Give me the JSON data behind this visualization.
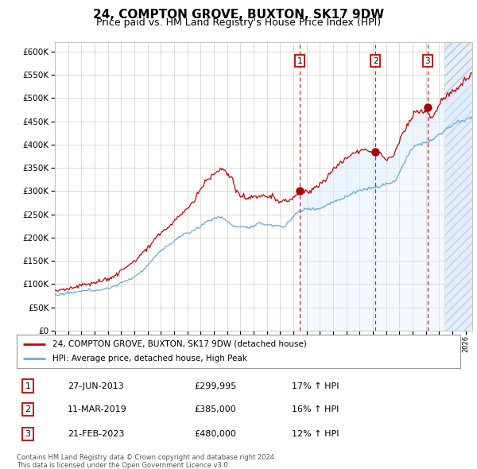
{
  "title": "24, COMPTON GROVE, BUXTON, SK17 9DW",
  "subtitle": "Price paid vs. HM Land Registry's House Price Index (HPI)",
  "ylim": [
    0,
    620000
  ],
  "yticks": [
    0,
    50000,
    100000,
    150000,
    200000,
    250000,
    300000,
    350000,
    400000,
    450000,
    500000,
    550000,
    600000
  ],
  "xlim_start": 1995.0,
  "xlim_end": 2026.5,
  "sale_dates": [
    2013.49,
    2019.19,
    2023.13
  ],
  "sale_prices": [
    299995,
    385000,
    480000
  ],
  "sale_labels": [
    "1",
    "2",
    "3"
  ],
  "legend_line1": "24, COMPTON GROVE, BUXTON, SK17 9DW (detached house)",
  "legend_line2": "HPI: Average price, detached house, High Peak",
  "table_entries": [
    [
      "1",
      "27-JUN-2013",
      "£299,995",
      "17% ↑ HPI"
    ],
    [
      "2",
      "11-MAR-2019",
      "£385,000",
      "16% ↑ HPI"
    ],
    [
      "3",
      "21-FEB-2023",
      "£480,000",
      "12% ↑ HPI"
    ]
  ],
  "footnote": "Contains HM Land Registry data © Crown copyright and database right 2024.\nThis data is licensed under the Open Government Licence v3.0.",
  "hpi_color": "#6aaadd",
  "price_color": "#cc0000",
  "sale_dot_color": "#aa0000",
  "vline_color": "#cc0000",
  "hpi_fill_color": "#ddeeff",
  "background_color": "#ffffff",
  "grid_color": "#cccccc",
  "title_fontsize": 11,
  "subtitle_fontsize": 9,
  "axis_fontsize": 7.5,
  "hatch_start": 2024.42
}
